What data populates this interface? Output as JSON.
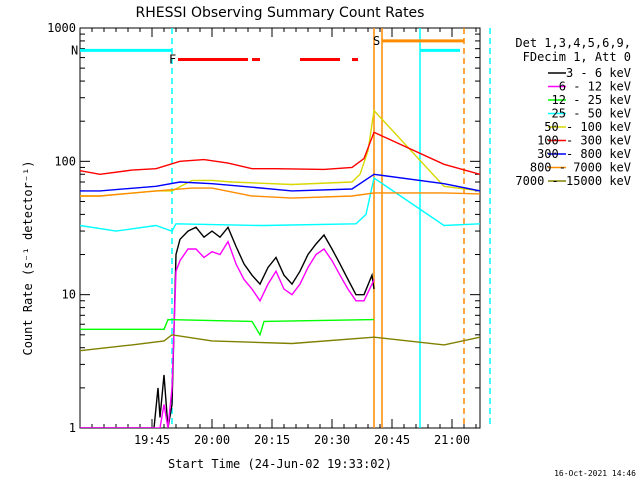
{
  "chart_data": {
    "type": "line",
    "title": "RHESSI Observing Summary Count Rates",
    "xlabel": "Start Time (24-Jun-02 19:33:02)",
    "ylabel": "Count Rate (s⁻¹ detector⁻¹)",
    "yscale": "log",
    "ylim": [
      1,
      1000
    ],
    "xlim_minutes": [
      -33,
      67
    ],
    "y_ticks": [
      {
        "value": 1,
        "label": "1"
      },
      {
        "value": 10,
        "label": "10"
      },
      {
        "value": 100,
        "label": "100"
      },
      {
        "value": 1000,
        "label": "1000"
      }
    ],
    "x_ticks": [
      {
        "minute": -15,
        "label": "19:45"
      },
      {
        "minute": 0,
        "label": "20:00"
      },
      {
        "minute": 15,
        "label": "20:15"
      },
      {
        "minute": 30,
        "label": "20:30"
      },
      {
        "minute": 45,
        "label": "20:45"
      },
      {
        "minute": 60,
        "label": "21:00"
      }
    ],
    "legend_header": [
      "Det 1,3,4,5,6,9,",
      "FDecim 1, Att 0"
    ],
    "footer_date": "16-Oct-2021 14:46",
    "flags": [
      {
        "label": "N",
        "color": "#00ffff",
        "level": 680,
        "segments": [
          [
            -33,
            -10
          ],
          [
            52,
            62
          ]
        ]
      },
      {
        "label": "F",
        "color": "#ff0000",
        "level": 580,
        "segments": [
          [
            -8.5,
            9
          ],
          [
            10,
            12
          ],
          [
            22,
            32
          ],
          [
            35,
            36.5
          ]
        ]
      },
      {
        "label": "S",
        "color": "#ff8c00",
        "level": 800,
        "segments": [
          [
            42.5,
            63
          ]
        ]
      }
    ],
    "markers": [
      {
        "minute": -10,
        "color": "#00ffff",
        "style": "dashed"
      },
      {
        "minute": 40.5,
        "color": "#ff8c00",
        "style": "solid"
      },
      {
        "minute": 42.5,
        "color": "#ff8c00",
        "style": "solid"
      },
      {
        "minute": 52,
        "color": "#00ffff",
        "style": "solid"
      },
      {
        "minute": 63,
        "color": "#ff8c00",
        "style": "dashed"
      },
      {
        "minute": 69.5,
        "color": "#00ffff",
        "style": "dashed"
      }
    ],
    "series": [
      {
        "name": "3 - 6 keV",
        "color": "#000000",
        "points": [
          [
            -33,
            1
          ],
          [
            -14.5,
            1
          ],
          [
            -13.5,
            2
          ],
          [
            -13,
            1.2
          ],
          [
            -12,
            2.5
          ],
          [
            -11,
            1
          ],
          [
            -10,
            1.5
          ],
          [
            -9,
            20
          ],
          [
            -8,
            26
          ],
          [
            -6,
            30
          ],
          [
            -4,
            32
          ],
          [
            -2,
            27
          ],
          [
            0,
            30
          ],
          [
            2,
            27
          ],
          [
            4,
            32
          ],
          [
            6,
            23
          ],
          [
            8,
            17
          ],
          [
            10,
            14
          ],
          [
            12,
            12
          ],
          [
            14,
            16
          ],
          [
            16,
            19
          ],
          [
            18,
            14
          ],
          [
            20,
            12
          ],
          [
            22,
            15
          ],
          [
            24,
            20
          ],
          [
            26,
            24
          ],
          [
            28,
            28
          ],
          [
            30,
            22
          ],
          [
            32,
            17
          ],
          [
            34,
            13
          ],
          [
            36,
            10
          ],
          [
            38,
            10
          ],
          [
            40,
            14
          ],
          [
            40.5,
            11
          ]
        ]
      },
      {
        "name": "6 - 12 keV",
        "color": "#ff00ff",
        "points": [
          [
            -33,
            1
          ],
          [
            -13,
            1
          ],
          [
            -12,
            1.5
          ],
          [
            -11,
            1
          ],
          [
            -10,
            2
          ],
          [
            -9,
            15
          ],
          [
            -8,
            18
          ],
          [
            -6,
            22
          ],
          [
            -4,
            22
          ],
          [
            -2,
            19
          ],
          [
            0,
            21
          ],
          [
            2,
            20
          ],
          [
            4,
            25
          ],
          [
            6,
            17
          ],
          [
            8,
            13
          ],
          [
            10,
            11
          ],
          [
            12,
            9
          ],
          [
            14,
            12
          ],
          [
            16,
            15
          ],
          [
            18,
            11
          ],
          [
            20,
            10
          ],
          [
            22,
            12
          ],
          [
            24,
            16
          ],
          [
            26,
            20
          ],
          [
            28,
            22
          ],
          [
            30,
            18
          ],
          [
            32,
            14
          ],
          [
            34,
            11
          ],
          [
            36,
            9
          ],
          [
            38,
            9
          ],
          [
            40,
            12
          ],
          [
            40.5,
            13
          ]
        ]
      },
      {
        "name": "12 - 25 keV",
        "color": "#00ff00",
        "points": [
          [
            -33,
            5.5
          ],
          [
            -12,
            5.5
          ],
          [
            -11,
            6.5
          ],
          [
            10,
            6.3
          ],
          [
            12,
            5
          ],
          [
            13,
            6.3
          ],
          [
            40.5,
            6.5
          ]
        ]
      },
      {
        "name": "25 - 50 keV",
        "color": "#00ffff",
        "points": [
          [
            -33,
            33
          ],
          [
            -24,
            30
          ],
          [
            -14,
            33
          ],
          [
            -10,
            30
          ],
          [
            -9,
            34
          ],
          [
            12,
            33
          ],
          [
            13,
            33
          ],
          [
            36,
            34
          ],
          [
            38.5,
            40
          ],
          [
            40.5,
            75
          ],
          [
            58,
            33
          ],
          [
            67,
            34
          ]
        ]
      },
      {
        "name": "50 - 100 keV",
        "color": "#d8d800",
        "points": [
          [
            -33,
            55
          ],
          [
            -28,
            55
          ],
          [
            -14,
            60
          ],
          [
            -10,
            60
          ],
          [
            -5,
            72
          ],
          [
            0,
            72
          ],
          [
            5,
            70
          ],
          [
            20,
            67
          ],
          [
            35,
            70
          ],
          [
            37,
            80
          ],
          [
            39,
            120
          ],
          [
            40.5,
            240
          ],
          [
            58,
            65
          ],
          [
            67,
            60
          ]
        ]
      },
      {
        "name": "100 - 300 keV",
        "color": "#ff0000",
        "points": [
          [
            -33,
            85
          ],
          [
            -28,
            80
          ],
          [
            -20,
            86
          ],
          [
            -14,
            88
          ],
          [
            -8,
            100
          ],
          [
            -2,
            103
          ],
          [
            4,
            97
          ],
          [
            10,
            88
          ],
          [
            16,
            88
          ],
          [
            28,
            87
          ],
          [
            35,
            90
          ],
          [
            38,
            105
          ],
          [
            40.5,
            165
          ],
          [
            58,
            95
          ],
          [
            67,
            80
          ]
        ]
      },
      {
        "name": "300 - 800 keV",
        "color": "#0000ff",
        "points": [
          [
            -33,
            60
          ],
          [
            -28,
            60
          ],
          [
            -14,
            65
          ],
          [
            -8,
            70
          ],
          [
            0,
            68
          ],
          [
            10,
            64
          ],
          [
            20,
            60
          ],
          [
            35,
            62
          ],
          [
            40.5,
            80
          ],
          [
            58,
            68
          ],
          [
            67,
            60
          ]
        ]
      },
      {
        "name": "800 - 7000 keV",
        "color": "#ff8c00",
        "points": [
          [
            -33,
            55
          ],
          [
            -28,
            55
          ],
          [
            -14,
            60
          ],
          [
            -5,
            63
          ],
          [
            0,
            63
          ],
          [
            10,
            55
          ],
          [
            20,
            53
          ],
          [
            35,
            55
          ],
          [
            40.5,
            58
          ],
          [
            58,
            58
          ],
          [
            67,
            57
          ]
        ]
      },
      {
        "name": "7000 - 15000 keV",
        "color": "#808000",
        "points": [
          [
            -33,
            3.8
          ],
          [
            -20,
            4.2
          ],
          [
            -12,
            4.5
          ],
          [
            -10,
            5
          ],
          [
            0,
            4.5
          ],
          [
            20,
            4.3
          ],
          [
            40.5,
            4.8
          ],
          [
            58,
            4.2
          ],
          [
            67,
            4.8
          ]
        ]
      }
    ]
  }
}
